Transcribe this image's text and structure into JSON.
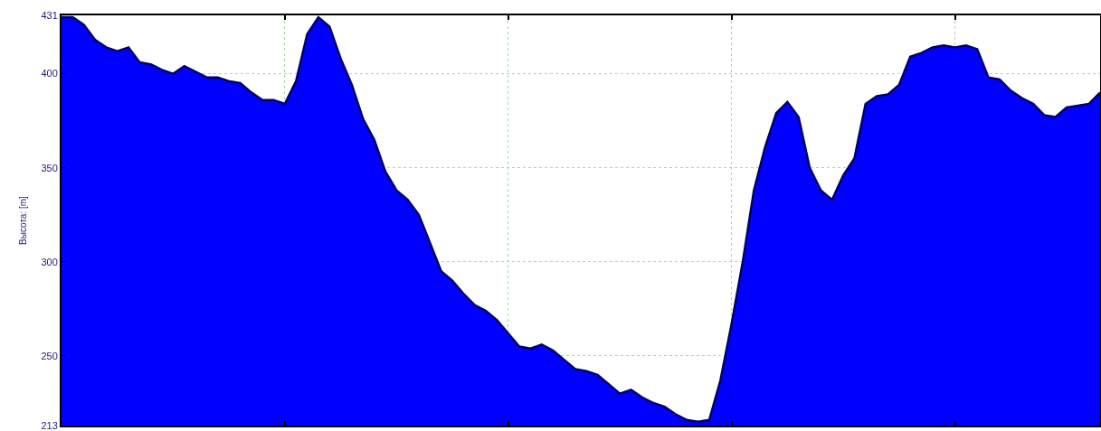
{
  "chart_data": {
    "type": "area",
    "ylabel": "Высота: [m]",
    "categories": [
      null,
      null,
      null,
      null,
      null,
      null,
      null,
      null,
      null,
      null,
      null,
      null,
      null,
      null,
      null,
      null,
      null,
      null,
      null,
      null,
      null,
      null,
      null,
      null,
      null,
      null,
      null,
      null,
      null,
      null,
      null,
      null,
      null,
      null,
      null,
      null,
      null,
      null,
      null,
      null,
      null,
      null,
      null,
      null,
      null,
      null,
      null,
      null,
      null,
      null,
      null,
      null,
      null,
      null,
      null,
      null,
      null,
      null,
      null,
      null,
      null,
      null,
      null,
      null,
      null,
      null,
      null,
      null,
      null,
      null,
      null,
      null,
      null,
      null,
      null,
      null,
      null,
      null,
      null,
      null,
      null,
      null,
      null,
      null,
      null,
      null,
      null,
      null,
      null,
      null,
      null,
      null,
      null,
      null
    ],
    "series": [
      {
        "color": "#0000ff",
        "values": [
          430,
          430,
          426,
          418,
          414,
          412,
          414,
          406,
          405,
          402,
          400,
          404,
          401,
          398,
          398,
          396,
          395,
          390,
          386,
          386,
          384,
          396,
          421,
          430,
          425,
          408,
          394,
          376,
          365,
          348,
          338,
          333,
          325,
          310,
          295,
          290,
          283,
          277,
          274,
          269,
          262,
          255,
          254,
          256,
          253,
          248,
          243,
          242,
          240,
          235,
          230,
          232,
          228,
          225,
          223,
          219,
          216,
          215,
          216,
          237,
          267,
          300,
          338,
          361,
          379,
          385,
          377,
          350,
          338,
          333,
          346,
          355,
          384,
          388,
          389,
          394,
          409,
          411,
          414,
          415,
          414,
          415,
          413,
          398,
          397,
          391,
          387,
          384,
          378,
          377,
          382,
          383,
          384,
          390
        ]
      }
    ],
    "ylim": [
      213,
      431
    ],
    "yticks": [
      213,
      250,
      300,
      350,
      400,
      431
    ],
    "grid": true
  }
}
